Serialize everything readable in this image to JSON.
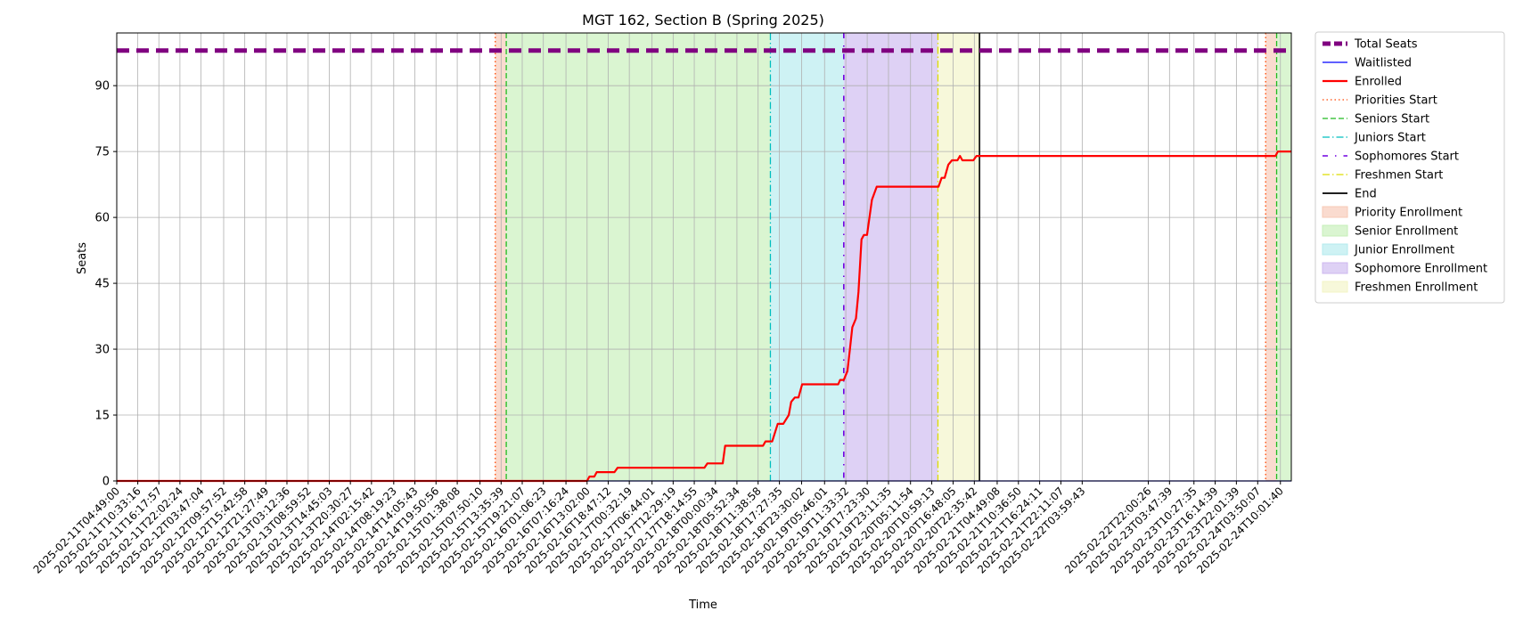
{
  "chart_data": {
    "type": "line",
    "title": "MGT 162, Section B (Spring 2025)",
    "xlabel": "Time",
    "ylabel": "Seats",
    "ylim": [
      0,
      102
    ],
    "yticks": [
      0,
      15,
      30,
      45,
      60,
      75,
      90
    ],
    "xlim": [
      "2025-02-11T04:49:00",
      "2025-02-24T13:00:00"
    ],
    "grid": true,
    "legend_position": "outside-right",
    "x_tick_labels": [
      "2025-02-11T04:49:00",
      "2025-02-11T10:33:16",
      "2025-02-11T16:17:57",
      "2025-02-11T22:02:24",
      "2025-02-12T03:47:04",
      "2025-02-12T09:57:52",
      "2025-02-12T15:42:58",
      "2025-02-12T21:27:49",
      "2025-02-13T03:12:36",
      "2025-02-13T08:59:52",
      "2025-02-13T14:45:03",
      "2025-02-13T20:30:27",
      "2025-02-14T02:15:42",
      "2025-02-14T08:19:23",
      "2025-02-14T14:05:43",
      "2025-02-14T19:50:56",
      "2025-02-15T01:38:08",
      "2025-02-15T07:50:10",
      "2025-02-15T13:35:39",
      "2025-02-15T19:21:07",
      "2025-02-16T01:06:23",
      "2025-02-16T07:16:24",
      "2025-02-16T13:02:00",
      "2025-02-16T18:47:12",
      "2025-02-17T00:32:19",
      "2025-02-17T06:44:01",
      "2025-02-17T12:29:19",
      "2025-02-17T18:14:55",
      "2025-02-18T00:00:34",
      "2025-02-18T05:52:34",
      "2025-02-18T11:38:58",
      "2025-02-18T17:27:35",
      "2025-02-18T23:30:02",
      "2025-02-19T05:46:01",
      "2025-02-19T11:33:32",
      "2025-02-19T17:23:30",
      "2025-02-19T23:11:35",
      "2025-02-20T05:11:54",
      "2025-02-20T10:59:13",
      "2025-02-20T16:48:05",
      "2025-02-20T22:35:42",
      "2025-02-21T04:49:08",
      "2025-02-21T10:36:50",
      "2025-02-21T16:24:11",
      "2025-02-21T22:11:07",
      "2025-02-22T03:59:43",
      "2025-02-22T22:00:26",
      "2025-02-23T03:47:39",
      "2025-02-23T10:27:35",
      "2025-02-23T16:14:39",
      "2025-02-23T22:01:39",
      "2025-02-24T03:50:07",
      "2025-02-24T10:01:40"
    ],
    "series": [
      {
        "name": "Total Seats",
        "color": "#800080",
        "style": "dashed-thick",
        "points": [
          [
            "2025-02-11T04:49:00",
            98
          ],
          [
            "2025-02-24T13:00:00",
            98
          ]
        ]
      },
      {
        "name": "Waitlisted",
        "color": "#0000ff",
        "style": "solid",
        "points": [
          [
            "2025-02-11T04:49:00",
            0
          ],
          [
            "2025-02-24T13:00:00",
            0
          ]
        ]
      },
      {
        "name": "Enrolled",
        "color": "#ff0000",
        "style": "solid-thick",
        "points": [
          [
            "2025-02-11T04:49:00",
            0
          ],
          [
            "2025-02-16T13:00:00",
            0
          ],
          [
            "2025-02-16T13:40:00",
            1
          ],
          [
            "2025-02-16T15:00:00",
            1
          ],
          [
            "2025-02-16T15:40:00",
            2
          ],
          [
            "2025-02-16T20:30:00",
            2
          ],
          [
            "2025-02-16T21:20:00",
            3
          ],
          [
            "2025-02-17T21:00:00",
            3
          ],
          [
            "2025-02-17T21:50:00",
            4
          ],
          [
            "2025-02-18T02:00:00",
            4
          ],
          [
            "2025-02-18T02:40:00",
            8
          ],
          [
            "2025-02-18T13:00:00",
            8
          ],
          [
            "2025-02-18T13:40:00",
            9
          ],
          [
            "2025-02-18T15:30:00",
            9
          ],
          [
            "2025-02-18T17:00:00",
            13
          ],
          [
            "2025-02-18T18:30:00",
            13
          ],
          [
            "2025-02-18T20:00:00",
            15
          ],
          [
            "2025-02-18T20:40:00",
            18
          ],
          [
            "2025-02-18T21:40:00",
            19
          ],
          [
            "2025-02-18T22:40:00",
            19
          ],
          [
            "2025-02-18T23:40:00",
            22
          ],
          [
            "2025-02-19T09:30:00",
            22
          ],
          [
            "2025-02-19T10:00:00",
            23
          ],
          [
            "2025-02-19T11:00:00",
            23
          ],
          [
            "2025-02-19T12:00:00",
            25
          ],
          [
            "2025-02-19T12:40:00",
            30
          ],
          [
            "2025-02-19T13:20:00",
            35
          ],
          [
            "2025-02-19T14:20:00",
            37
          ],
          [
            "2025-02-19T15:00:00",
            43
          ],
          [
            "2025-02-19T15:50:00",
            55
          ],
          [
            "2025-02-19T16:30:00",
            56
          ],
          [
            "2025-02-19T17:20:00",
            56
          ],
          [
            "2025-02-19T18:40:00",
            64
          ],
          [
            "2025-02-19T20:00:00",
            67
          ],
          [
            "2025-02-20T12:50:00",
            67
          ],
          [
            "2025-02-20T13:40:00",
            69
          ],
          [
            "2025-02-20T14:30:00",
            69
          ],
          [
            "2025-02-20T15:30:00",
            72
          ],
          [
            "2025-02-20T16:30:00",
            73
          ],
          [
            "2025-02-20T18:00:00",
            73
          ],
          [
            "2025-02-20T18:40:00",
            74
          ],
          [
            "2025-02-20T19:20:00",
            73
          ],
          [
            "2025-02-20T22:20:00",
            73
          ],
          [
            "2025-02-20T23:10:00",
            74
          ],
          [
            "2025-02-24T08:40:00",
            74
          ],
          [
            "2025-02-24T09:20:00",
            75
          ],
          [
            "2025-02-24T13:00:00",
            75
          ]
        ]
      }
    ],
    "markers": [
      {
        "name": "Priorities Start",
        "color": "#ff4500",
        "style": "dotted",
        "x": [
          "2025-02-15T12:00:00",
          "2025-02-24T06:00:00"
        ]
      },
      {
        "name": "Seniors Start",
        "color": "#22bb22",
        "style": "dashed",
        "x": [
          "2025-02-15T15:00:00",
          "2025-02-24T09:00:00"
        ]
      },
      {
        "name": "Juniors Start",
        "color": "#00bfbf",
        "style": "dashdot",
        "x": [
          "2025-02-18T15:00:00"
        ]
      },
      {
        "name": "Sophomores Start",
        "color": "#7000e0",
        "style": "dashdot-sparse",
        "x": [
          "2025-02-19T11:00:00"
        ]
      },
      {
        "name": "Freshmen Start",
        "color": "#dddd00",
        "style": "dashdot",
        "x": [
          "2025-02-20T12:40:00"
        ]
      },
      {
        "name": "End",
        "color": "#000000",
        "style": "solid",
        "x": [
          "2025-02-21T00:00:00"
        ]
      }
    ],
    "regions": [
      {
        "name": "Priority Enrollment",
        "color": "#f7c8b6",
        "spans": [
          [
            "2025-02-15T12:00:00",
            "2025-02-15T15:00:00"
          ],
          [
            "2025-02-24T06:00:00",
            "2025-02-24T09:00:00"
          ]
        ]
      },
      {
        "name": "Senior Enrollment",
        "color": "#c6efb8",
        "spans": [
          [
            "2025-02-15T15:00:00",
            "2025-02-18T15:00:00"
          ],
          [
            "2025-02-24T09:00:00",
            "2025-02-24T13:00:00"
          ]
        ]
      },
      {
        "name": "Junior Enrollment",
        "color": "#b4ebee",
        "spans": [
          [
            "2025-02-18T15:00:00",
            "2025-02-19T11:00:00"
          ]
        ]
      },
      {
        "name": "Sophomore Enrollment",
        "color": "#cdb8ef",
        "spans": [
          [
            "2025-02-19T11:00:00",
            "2025-02-20T12:40:00"
          ]
        ]
      },
      {
        "name": "Freshmen Enrollment",
        "color": "#f3f4c6",
        "spans": [
          [
            "2025-02-20T12:40:00",
            "2025-02-21T00:00:00"
          ]
        ]
      }
    ]
  }
}
